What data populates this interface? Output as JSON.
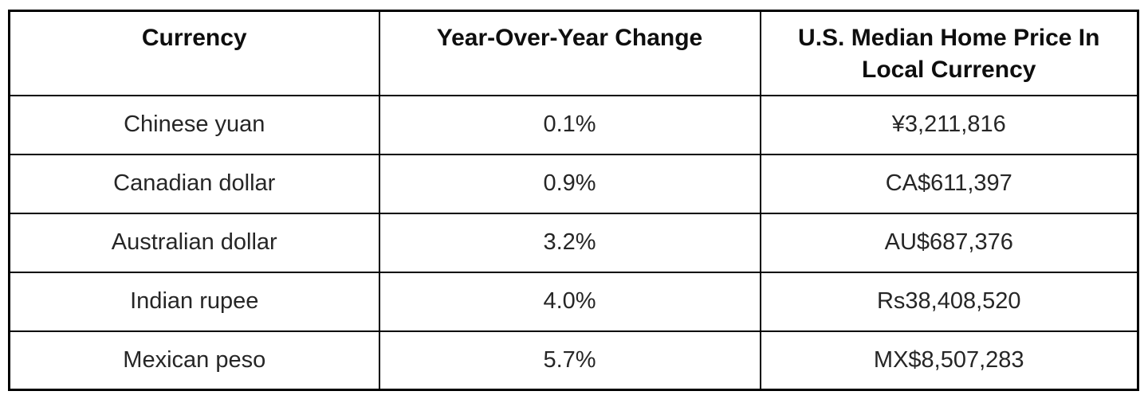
{
  "page": {
    "background_color": "#ffffff",
    "border_color": "#000000",
    "header_text_color": "#0e0e0e",
    "body_text_color": "#262626"
  },
  "table": {
    "columns": [
      {
        "label": "Currency"
      },
      {
        "label": "Year-Over-Year Change"
      },
      {
        "label": "U.S. Median Home Price In Local Currency"
      }
    ],
    "rows": [
      {
        "currency": "Chinese yuan",
        "yoy_change": "0.1%",
        "price_local": "¥3,211,816"
      },
      {
        "currency": "Canadian dollar",
        "yoy_change": "0.9%",
        "price_local": "CA$611,397"
      },
      {
        "currency": "Australian dollar",
        "yoy_change": "3.2%",
        "price_local": "AU$687,376"
      },
      {
        "currency": "Indian rupee",
        "yoy_change": "4.0%",
        "price_local": "Rs38,408,520"
      },
      {
        "currency": "Mexican peso",
        "yoy_change": "5.7%",
        "price_local": "MX$8,507,283"
      }
    ]
  },
  "chart_data": {
    "type": "table",
    "columns": [
      "Currency",
      "Year-Over-Year Change",
      "U.S. Median Home Price In Local Currency"
    ],
    "rows": [
      [
        "Chinese yuan",
        "0.1%",
        "¥3,211,816"
      ],
      [
        "Canadian dollar",
        "0.9%",
        "CA$611,397"
      ],
      [
        "Australian dollar",
        "3.2%",
        "AU$687,376"
      ],
      [
        "Indian rupee",
        "4.0%",
        "Rs38,408,520"
      ],
      [
        "Mexican peso",
        "5.7%",
        "MX$8,507,283"
      ]
    ]
  }
}
